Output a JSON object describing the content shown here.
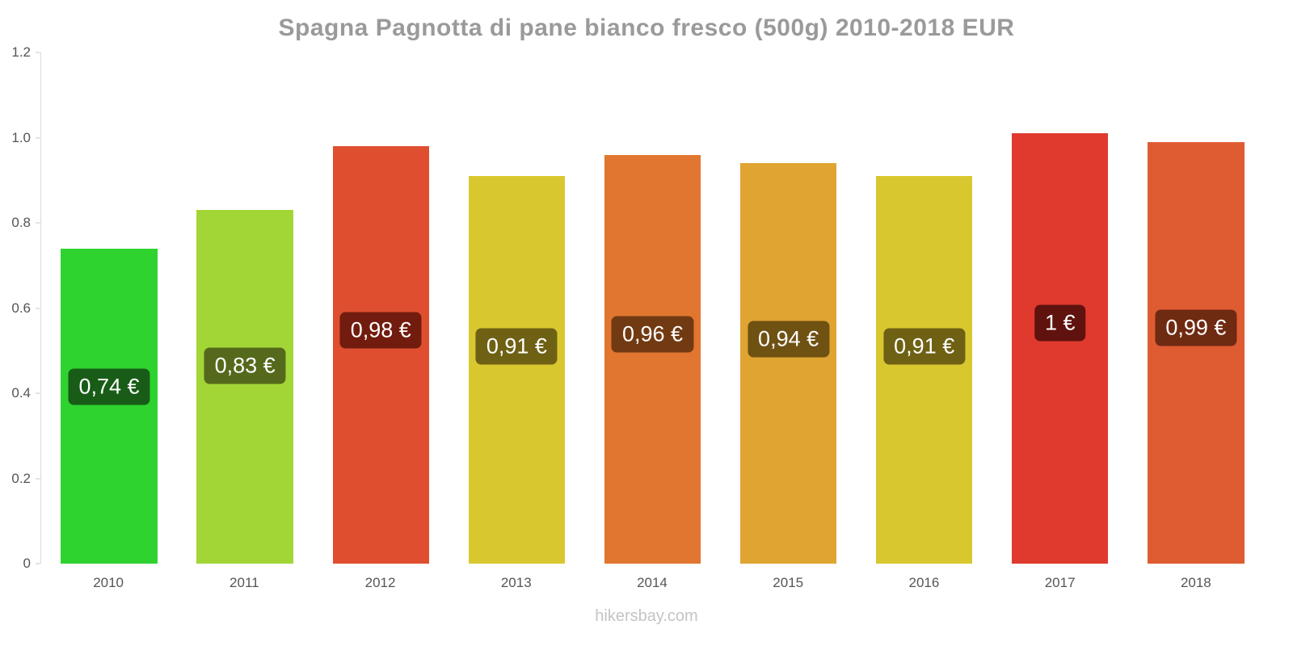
{
  "title": "Spagna Pagnotta di pane bianco fresco (500g) 2010-2018 EUR",
  "footer": "hikersbay.com",
  "chart_data": {
    "type": "bar",
    "title": "Spagna Pagnotta di pane bianco fresco (500g) 2010-2018 EUR",
    "categories": [
      "2010",
      "2011",
      "2012",
      "2013",
      "2014",
      "2015",
      "2016",
      "2017",
      "2018"
    ],
    "values": [
      0.74,
      0.83,
      0.98,
      0.91,
      0.96,
      0.94,
      0.91,
      1.01,
      0.99
    ],
    "bar_value_labels": [
      "0,74 €",
      "0,83 €",
      "0,98 €",
      "0,91 €",
      "0,96 €",
      "0,94 €",
      "0,91 €",
      "1 €",
      "0,99 €"
    ],
    "bar_colors": [
      "#2fd32f",
      "#a2d636",
      "#df4f2f",
      "#d9c72f",
      "#e0762f",
      "#dfa431",
      "#d9c72f",
      "#df3a2d",
      "#df5c33"
    ],
    "label_bg_colors": [
      "#185c18",
      "#55691c",
      "#711c0f",
      "#6e6114",
      "#713a12",
      "#6f5112",
      "#6e6114",
      "#5f120e",
      "#6f2a12"
    ],
    "xlabel": "",
    "ylabel": "",
    "ylim": [
      0,
      1.2
    ],
    "yticks": [
      0,
      0.2,
      0.4,
      0.6,
      0.8,
      1.0,
      1.2
    ],
    "ytick_labels": [
      "0",
      "0.2",
      "0.4",
      "0.6",
      "0.8",
      "1.0",
      "1.2"
    ],
    "grid": false,
    "legend": "none",
    "currency": "EUR"
  }
}
